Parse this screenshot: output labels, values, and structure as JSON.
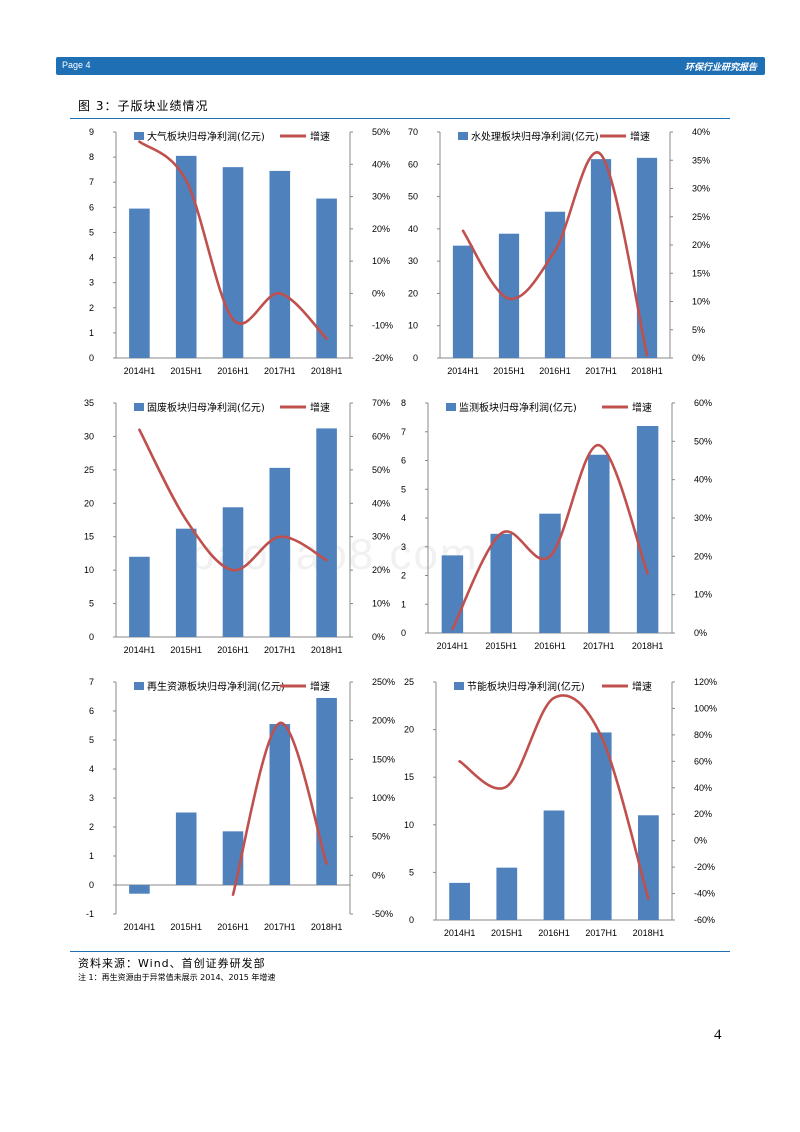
{
  "header": {
    "page_label": "Page 4",
    "report_title": "环保行业研究报告"
  },
  "figure": {
    "title": "图 3：子版块业绩情况"
  },
  "watermark": "baogao8.com",
  "footer": {
    "source": "资料来源：Wind、首创证券研发部",
    "note": "注 1：再生资源由于异常值未展示 2014、2015 年增速",
    "page_number": "4"
  },
  "colors": {
    "bar": "#4f81bd",
    "line": "#c0504d",
    "accent": "#1f6fb5"
  },
  "chart_data": [
    {
      "type": "bar",
      "categories": [
        "2014H1",
        "2015H1",
        "2016H1",
        "2017H1",
        "2018H1"
      ],
      "series": [
        {
          "name": "大气板块归母净利润(亿元)",
          "type": "bar",
          "axis": "left",
          "values": [
            5.95,
            8.05,
            7.6,
            7.45,
            6.35
          ]
        },
        {
          "name": "增速",
          "type": "line",
          "axis": "right",
          "values": [
            47,
            35,
            -8,
            0,
            -14
          ],
          "unit": "%"
        }
      ],
      "ylim_left": [
        0,
        9
      ],
      "yticks_left": [
        "0",
        "1",
        "2",
        "3",
        "4",
        "5",
        "6",
        "7",
        "8",
        "9"
      ],
      "ylim_right": [
        -20,
        50
      ],
      "yticks_right": [
        "-20%",
        "-10%",
        "0%",
        "10%",
        "20%",
        "30%",
        "40%",
        "50%"
      ],
      "legend": "top"
    },
    {
      "type": "bar",
      "categories": [
        "2014H1",
        "2015H1",
        "2016H1",
        "2017H1",
        "2018H1"
      ],
      "series": [
        {
          "name": "水处理板块归母净利润(亿元)",
          "type": "bar",
          "axis": "left",
          "values": [
            34.8,
            38.5,
            45.3,
            61.6,
            62
          ]
        },
        {
          "name": "增速",
          "type": "line",
          "axis": "right",
          "values": [
            22.5,
            10.5,
            19,
            36,
            0.5
          ],
          "unit": "%"
        }
      ],
      "ylim_left": [
        0,
        70
      ],
      "yticks_left": [
        "0",
        "10",
        "20",
        "30",
        "40",
        "50",
        "60",
        "70"
      ],
      "ylim_right": [
        0,
        40
      ],
      "yticks_right": [
        "0%",
        "5%",
        "10%",
        "15%",
        "20%",
        "25%",
        "30%",
        "35%",
        "40%"
      ],
      "legend": "top"
    },
    {
      "type": "bar",
      "categories": [
        "2014H1",
        "2015H1",
        "2016H1",
        "2017H1",
        "2018H1"
      ],
      "series": [
        {
          "name": "固废板块归母净利润(亿元)",
          "type": "bar",
          "axis": "left",
          "values": [
            12,
            16.2,
            19.4,
            25.3,
            31.2
          ]
        },
        {
          "name": "增速",
          "type": "line",
          "axis": "right",
          "values": [
            62,
            35,
            20,
            30,
            23
          ],
          "unit": "%"
        }
      ],
      "ylim_left": [
        0,
        35
      ],
      "yticks_left": [
        "0",
        "5",
        "10",
        "15",
        "20",
        "25",
        "30",
        "35"
      ],
      "ylim_right": [
        0,
        70
      ],
      "yticks_right": [
        "0%",
        "10%",
        "20%",
        "30%",
        "40%",
        "50%",
        "60%",
        "70%"
      ],
      "legend": "top"
    },
    {
      "type": "bar",
      "categories": [
        "2014H1",
        "2015H1",
        "2016H1",
        "2017H1",
        "2018H1"
      ],
      "series": [
        {
          "name": "监测板块归母净利润(亿元)",
          "type": "bar",
          "axis": "left",
          "values": [
            2.7,
            3.45,
            4.15,
            6.2,
            7.2
          ]
        },
        {
          "name": "增速",
          "type": "line",
          "axis": "right",
          "values": [
            1,
            26,
            20,
            49,
            15.5
          ],
          "unit": "%"
        }
      ],
      "ylim_left": [
        0,
        8
      ],
      "yticks_left": [
        "0",
        "1",
        "2",
        "3",
        "4",
        "5",
        "6",
        "7",
        "8"
      ],
      "ylim_right": [
        0,
        60
      ],
      "yticks_right": [
        "0%",
        "10%",
        "20%",
        "30%",
        "40%",
        "50%",
        "60%"
      ],
      "legend": "top"
    },
    {
      "type": "bar",
      "categories": [
        "2014H1",
        "2015H1",
        "2016H1",
        "2017H1",
        "2018H1"
      ],
      "series": [
        {
          "name": "再生资源板块归母净利润(亿元)",
          "type": "bar",
          "axis": "left",
          "values": [
            -0.3,
            2.5,
            1.85,
            5.55,
            6.45
          ]
        },
        {
          "name": "增速",
          "type": "line",
          "axis": "right",
          "values": [
            null,
            null,
            -25,
            197,
            15
          ],
          "unit": "%"
        }
      ],
      "ylim_left": [
        -1,
        7
      ],
      "yticks_left": [
        "-1",
        "0",
        "1",
        "2",
        "3",
        "4",
        "5",
        "6",
        "7"
      ],
      "ylim_right": [
        -50,
        250
      ],
      "yticks_right": [
        "-50%",
        "0%",
        "50%",
        "100%",
        "150%",
        "200%",
        "250%"
      ],
      "legend": "top"
    },
    {
      "type": "bar",
      "categories": [
        "2014H1",
        "2015H1",
        "2016H1",
        "2017H1",
        "2018H1"
      ],
      "series": [
        {
          "name": "节能板块归母净利润(亿元)",
          "type": "bar",
          "axis": "left",
          "values": [
            3.9,
            5.5,
            11.5,
            19.7,
            11
          ]
        },
        {
          "name": "增速",
          "type": "line",
          "axis": "right",
          "values": [
            60,
            41,
            108,
            79,
            -44
          ],
          "unit": "%"
        }
      ],
      "ylim_left": [
        0,
        25
      ],
      "yticks_left": [
        "0",
        "5",
        "10",
        "15",
        "20",
        "25"
      ],
      "ylim_right": [
        -60,
        120
      ],
      "yticks_right": [
        "-60%",
        "-40%",
        "-20%",
        "0%",
        "20%",
        "40%",
        "60%",
        "80%",
        "100%",
        "120%"
      ],
      "legend": "top"
    }
  ]
}
